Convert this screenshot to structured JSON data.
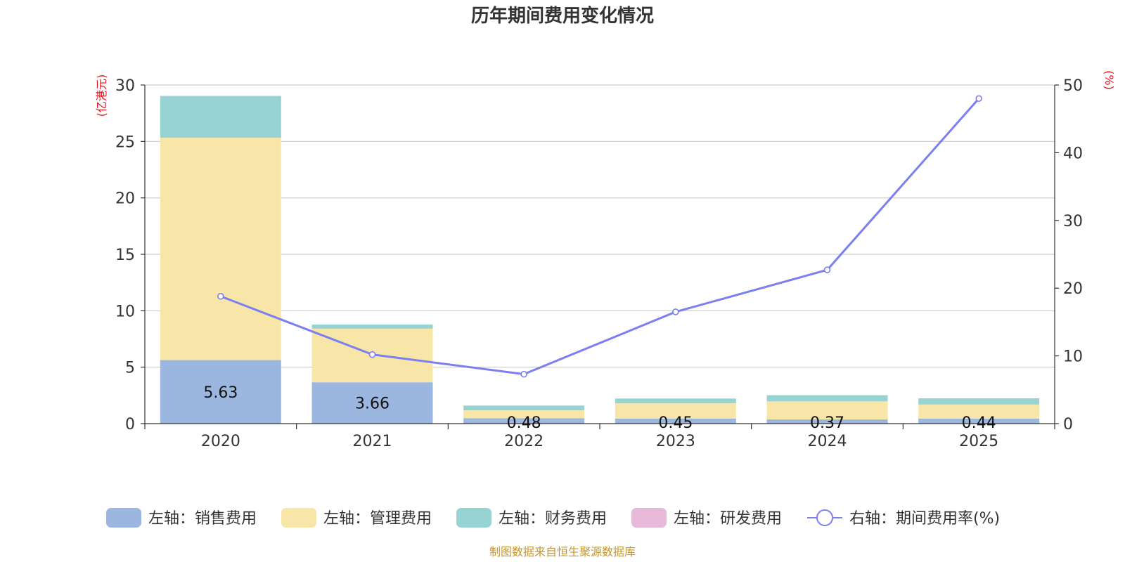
{
  "chart_data": {
    "type": "bar",
    "title": "历年期间费用变化情况",
    "categories": [
      "2020",
      "2021",
      "2022",
      "2023",
      "2024",
      "2025"
    ],
    "left_axis": {
      "unit": "(亿港元)",
      "ylim": [
        0,
        30
      ],
      "ticks": [
        "0",
        "5",
        "10",
        "15",
        "20",
        "25",
        "30"
      ]
    },
    "right_axis": {
      "unit": "(%)",
      "ylim": [
        0,
        50
      ],
      "ticks": [
        "0",
        "10",
        "20",
        "30",
        "40",
        "50"
      ]
    },
    "series": [
      {
        "name": "左轴：销售费用",
        "axis": "left",
        "kind": "bar",
        "color": "#9bb7e0",
        "values": [
          5.63,
          3.66,
          0.48,
          0.45,
          0.37,
          0.44
        ],
        "labels": [
          "5.63",
          "3.66",
          "0.48",
          "0.45",
          "0.37",
          "0.44"
        ]
      },
      {
        "name": "左轴：管理费用",
        "axis": "left",
        "kind": "bar",
        "color": "#f8e6a8",
        "values": [
          19.7,
          4.75,
          0.7,
          1.35,
          1.6,
          1.25
        ]
      },
      {
        "name": "左轴：财务费用",
        "axis": "left",
        "kind": "bar",
        "color": "#98d3d4",
        "values": [
          3.7,
          0.37,
          0.42,
          0.42,
          0.55,
          0.55
        ]
      },
      {
        "name": "左轴：研发费用",
        "axis": "left",
        "kind": "bar",
        "color": "#e8b8d8",
        "values": [
          0,
          0,
          0,
          0,
          0,
          0
        ]
      },
      {
        "name": "右轴：期间费用率(%)",
        "axis": "right",
        "kind": "line",
        "color": "#7b7ff0",
        "values": [
          18.8,
          10.2,
          7.3,
          16.5,
          22.7,
          48.0
        ]
      }
    ],
    "grid": true,
    "legend_position": "bottom"
  },
  "source": "制图数据来自恒生聚源数据库"
}
